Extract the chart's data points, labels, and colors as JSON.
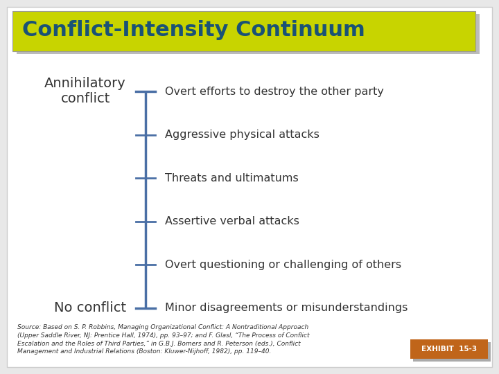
{
  "title": "Conflict-Intensity Continuum",
  "title_bg_color": "#c8d400",
  "title_text_color": "#1a5276",
  "title_fontsize": 22,
  "bg_color": "#e8e8e8",
  "main_bg_color": "#ffffff",
  "line_color": "#4a6fa5",
  "tick_color": "#4a6fa5",
  "items": [
    "Overt efforts to destroy the other party",
    "Aggressive physical attacks",
    "Threats and ultimatums",
    "Assertive verbal attacks",
    "Overt questioning or challenging of others",
    "Minor disagreements or misunderstandings"
  ],
  "top_label": "Annihilatory\nconflict",
  "bottom_label": "No conflict",
  "label_color": "#333333",
  "item_color": "#333333",
  "item_fontsize": 11.5,
  "label_fontsize": 14,
  "source_text": "Source: Based on S. P. Robbins, Managing Organizational Conflict: A Nontraditional Approach\n(Upper Saddle River, NJ: Prentice Hall, 1974), pp. 93–97; and F. Glasl, “The Process of Conflict\nEscalation and the Roles of Third Parties,” in G.B.J. Bomers and R. Peterson (eds.), Conflict\nManagement and Industrial Relations (Boston: Kluwer-Nijhoff, 1982), pp. 119–40.",
  "exhibit_text": "EXHIBIT  15-3",
  "exhibit_bg": "#c0651a",
  "exhibit_text_color": "#ffffff"
}
